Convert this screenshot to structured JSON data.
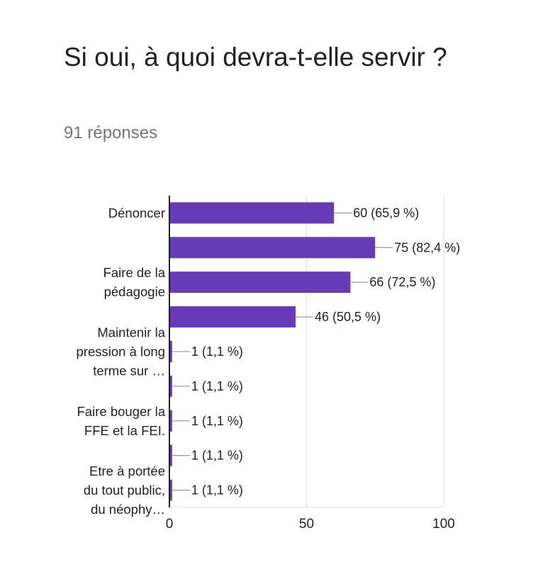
{
  "header": {
    "title": "Si oui, à quoi devra-t-elle servir ?",
    "responses": "91 réponses"
  },
  "colors": {
    "bar": "#673ab7",
    "grid": "#dcdcdc",
    "axis": "#222222",
    "leader": "#9e9e9e"
  },
  "chart_data": {
    "type": "bar",
    "orientation": "horizontal",
    "xlim": [
      0,
      100
    ],
    "xticks": [
      "0",
      "50",
      "100"
    ],
    "grid": true,
    "categories": [
      {
        "label": [
          "Dénoncer"
        ],
        "value": 60,
        "data_label": "60 (65,9 %)"
      },
      {
        "label": [],
        "value": 75,
        "data_label": "75 (82,4 %)"
      },
      {
        "label": [
          "Faire de la",
          "pédagogie"
        ],
        "value": 66,
        "data_label": "66 (72,5 %)"
      },
      {
        "label": [],
        "value": 46,
        "data_label": "46 (50,5 %)"
      },
      {
        "label": [
          "Maintenir la",
          "pression à long",
          "terme sur …"
        ],
        "value": 1,
        "data_label": "1 (1,1 %)"
      },
      {
        "label": [],
        "value": 1,
        "data_label": "1 (1,1 %)"
      },
      {
        "label": [
          "Faire bouger la",
          "FFE et la FEI."
        ],
        "value": 1,
        "data_label": "1 (1,1 %)"
      },
      {
        "label": [],
        "value": 1,
        "data_label": "1 (1,1 %)"
      },
      {
        "label": [
          "Etre à portée",
          "du tout public,",
          "du néophy…"
        ],
        "value": 1,
        "data_label": "1 (1,1 %)"
      }
    ]
  }
}
